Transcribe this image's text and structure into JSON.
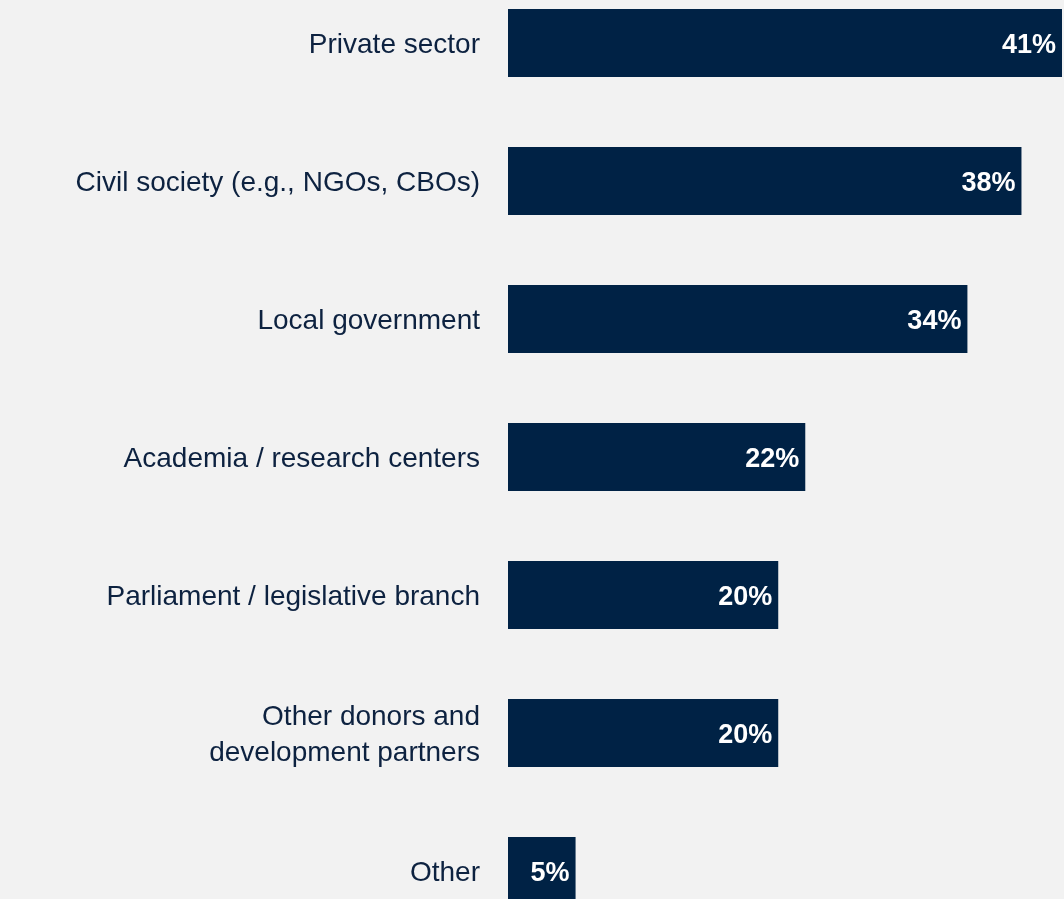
{
  "chart_data": {
    "type": "bar",
    "orientation": "horizontal",
    "categories": [
      "Private sector",
      "Civil society (e.g., NGOs, CBOs)",
      "Local government",
      "Academia / research centers",
      "Parliament / legislative branch",
      "Other donors and development partners",
      "Other"
    ],
    "values": [
      41,
      38,
      34,
      22,
      20,
      20,
      5
    ],
    "value_labels": [
      "41%",
      "38%",
      "34%",
      "22%",
      "20%",
      "20%",
      "5%"
    ],
    "color": "#002245"
  }
}
